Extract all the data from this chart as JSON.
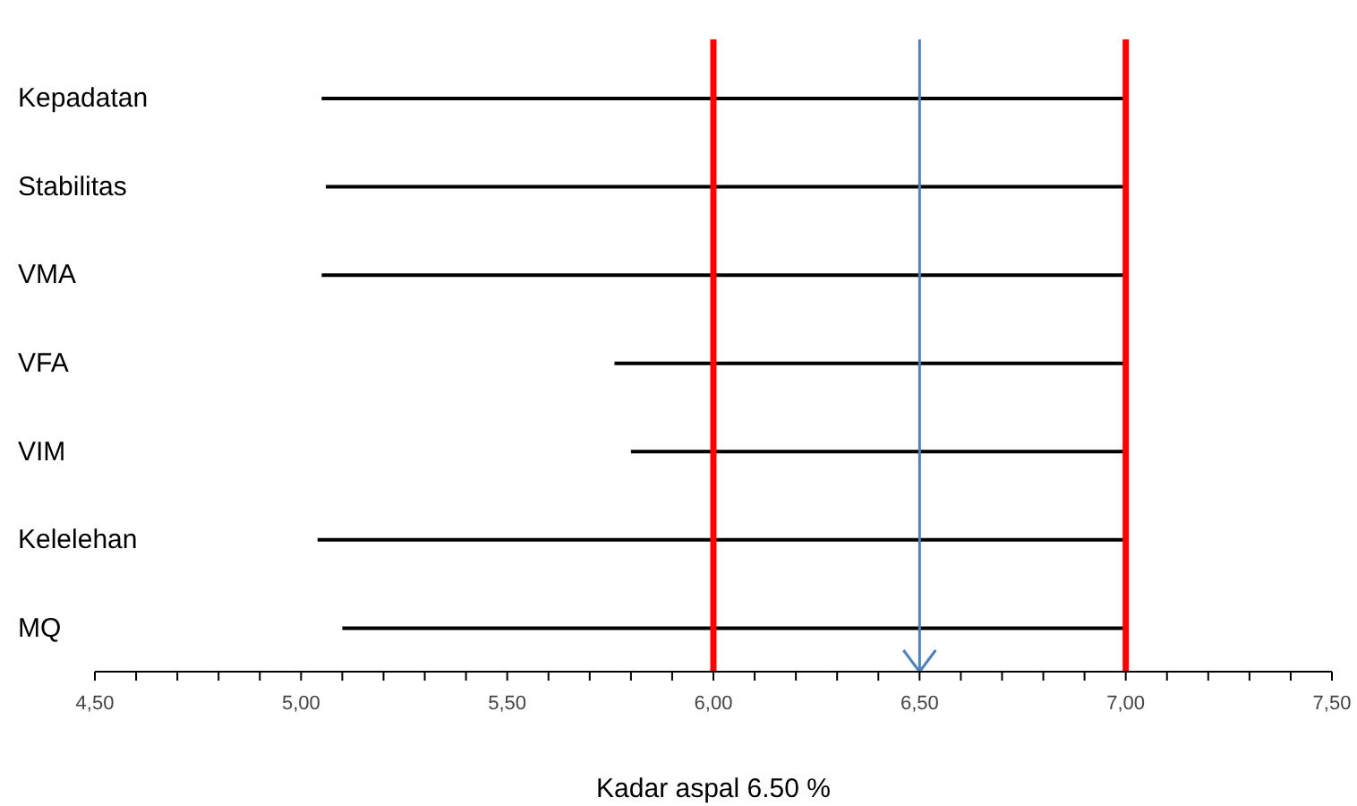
{
  "chart_data": {
    "type": "bar",
    "orientation": "horizontal",
    "xlabel": "Kadar aspal 6.50 %",
    "categories": [
      "Kepadatan",
      "Stabilitas",
      "VMA",
      "VFA",
      "VIM",
      "Kelelehan",
      "MQ"
    ],
    "base": [
      5.05,
      5.06,
      5.05,
      5.76,
      5.8,
      5.04,
      5.1
    ],
    "values": [
      1.95,
      1.94,
      1.95,
      1.24,
      1.2,
      1.96,
      1.9
    ],
    "color": "#000000",
    "xlim": [
      4.5,
      7.5
    ],
    "xticks": [
      {
        "value": 4.5,
        "label": "4,50"
      },
      {
        "value": 4.6,
        "label": null
      },
      {
        "value": 4.7,
        "label": null
      },
      {
        "value": 4.8,
        "label": null
      },
      {
        "value": 4.9,
        "label": null
      },
      {
        "value": 5.0,
        "label": "5,00"
      },
      {
        "value": 5.1,
        "label": null
      },
      {
        "value": 5.2,
        "label": null
      },
      {
        "value": 5.3,
        "label": null
      },
      {
        "value": 5.4,
        "label": null
      },
      {
        "value": 5.5,
        "label": "5,50"
      },
      {
        "value": 5.6,
        "label": null
      },
      {
        "value": 5.7,
        "label": null
      },
      {
        "value": 5.8,
        "label": null
      },
      {
        "value": 5.9,
        "label": null
      },
      {
        "value": 6.0,
        "label": "6,00"
      },
      {
        "value": 6.1,
        "label": null
      },
      {
        "value": 6.2,
        "label": null
      },
      {
        "value": 6.3,
        "label": null
      },
      {
        "value": 6.4,
        "label": null
      },
      {
        "value": 6.5,
        "label": "6,50"
      },
      {
        "value": 6.6,
        "label": null
      },
      {
        "value": 6.7,
        "label": null
      },
      {
        "value": 6.8,
        "label": null
      },
      {
        "value": 6.9,
        "label": null
      },
      {
        "value": 7.0,
        "label": "7,00"
      },
      {
        "value": 7.1,
        "label": null
      },
      {
        "value": 7.2,
        "label": null
      },
      {
        "value": 7.3,
        "label": null
      },
      {
        "value": 7.4,
        "label": null
      },
      {
        "value": 7.5,
        "label": "7,50"
      }
    ],
    "ref_lines": [
      {
        "axis": "x",
        "value": 6.0,
        "color": "#ff0000"
      },
      {
        "axis": "x",
        "value": 7.0,
        "color": "#ff0000"
      },
      {
        "axis": "x",
        "value": 6.5,
        "color": "#4f81bd"
      }
    ]
  }
}
